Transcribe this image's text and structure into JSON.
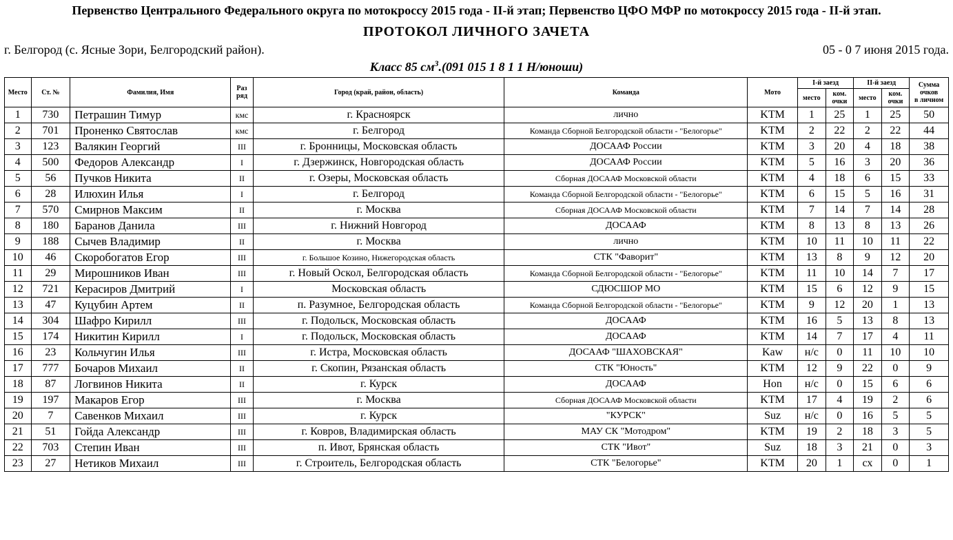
{
  "header": {
    "title": "Первенство Центрального Федерального округа по мотокроссу 2015 года - II-й этап; Первенство ЦФО МФР по мотокроссу 2015 года - II-й этап.",
    "subtitle": "ПРОТОКОЛ  ЛИЧНОГО  ЗАЧЕТА",
    "location": "г. Белгород (с. Ясные Зори, Белгородский район).",
    "dates": "05 - 0 7 июня 2015 года.",
    "class_prefix": "Класс 85 см",
    "class_sup": "3",
    "class_suffix": ".(091 015 1 8 1 1 Н/юноши)"
  },
  "columns": {
    "place": "Место",
    "st_no": "Ст. №",
    "name": "Фамилия, Имя",
    "razryad_l1": "Раз",
    "razryad_l2": "ряд",
    "city": "Город (край, район, область)",
    "team": "Команда",
    "moto": "Мото",
    "heat1": "I-й заезд",
    "heat2": "II-й заезд",
    "sub_place": "место",
    "sub_pts_l1": "ком.",
    "sub_pts_l2": "очки",
    "sum_l1": "Сумма",
    "sum_l2": "очков",
    "sum_l3": "в личном"
  },
  "rows": [
    {
      "p": "1",
      "st": "730",
      "name": "Петрашин Тимур",
      "r": "кмс",
      "city": "г. Красноярск",
      "team": "лично",
      "moto": "KTM",
      "h1p": "1",
      "h1k": "25",
      "h2p": "1",
      "h2k": "25",
      "sum": "50",
      "team_small": false,
      "city_small": false
    },
    {
      "p": "2",
      "st": "701",
      "name": "Проненко Святослав",
      "r": "кмс",
      "city": "г. Белгород",
      "team": "Команда Сборной Белгородской области - \"Белогорье\"",
      "moto": "KTM",
      "h1p": "2",
      "h1k": "22",
      "h2p": "2",
      "h2k": "22",
      "sum": "44",
      "team_small": true,
      "city_small": false
    },
    {
      "p": "3",
      "st": "123",
      "name": "Валякин Георгий",
      "r": "III",
      "city": "г. Бронницы, Московская область",
      "team": "ДОСААФ России",
      "moto": "KTM",
      "h1p": "3",
      "h1k": "20",
      "h2p": "4",
      "h2k": "18",
      "sum": "38",
      "team_small": false,
      "city_small": false
    },
    {
      "p": "4",
      "st": "500",
      "name": "Федоров Александр",
      "r": "I",
      "city": "г. Дзержинск, Новгородская область",
      "team": "ДОСААФ России",
      "moto": "KTM",
      "h1p": "5",
      "h1k": "16",
      "h2p": "3",
      "h2k": "20",
      "sum": "36",
      "team_small": false,
      "city_small": false
    },
    {
      "p": "5",
      "st": "56",
      "name": "Пучков Никита",
      "r": "II",
      "city": "г. Озеры, Московская область",
      "team": "Сборная ДОСААФ Московской области",
      "moto": "KTM",
      "h1p": "4",
      "h1k": "18",
      "h2p": "6",
      "h2k": "15",
      "sum": "33",
      "team_small": true,
      "city_small": false
    },
    {
      "p": "6",
      "st": "28",
      "name": "Илюхин Илья",
      "r": "I",
      "city": "г. Белгород",
      "team": "Команда Сборной Белгородской области - \"Белогорье\"",
      "moto": "KTM",
      "h1p": "6",
      "h1k": "15",
      "h2p": "5",
      "h2k": "16",
      "sum": "31",
      "team_small": true,
      "city_small": false
    },
    {
      "p": "7",
      "st": "570",
      "name": "Смирнов Максим",
      "r": "II",
      "city": "г. Москва",
      "team": "Сборная ДОСААФ Московской области",
      "moto": "KTM",
      "h1p": "7",
      "h1k": "14",
      "h2p": "7",
      "h2k": "14",
      "sum": "28",
      "team_small": true,
      "city_small": false
    },
    {
      "p": "8",
      "st": "180",
      "name": "Баранов Данила",
      "r": "III",
      "city": "г. Нижний Новгород",
      "team": "ДОСААФ",
      "moto": "KTM",
      "h1p": "8",
      "h1k": "13",
      "h2p": "8",
      "h2k": "13",
      "sum": "26",
      "team_small": false,
      "city_small": false
    },
    {
      "p": "9",
      "st": "188",
      "name": "Сычев Владимир",
      "r": "II",
      "city": "г. Москва",
      "team": "лично",
      "moto": "KTM",
      "h1p": "10",
      "h1k": "11",
      "h2p": "10",
      "h2k": "11",
      "sum": "22",
      "team_small": false,
      "city_small": false
    },
    {
      "p": "10",
      "st": "46",
      "name": "Скоробогатов Егор",
      "r": "III",
      "city": "г. Большое Козино, Нижегородская область",
      "team": "СТК \"Фаворит\"",
      "moto": "KTM",
      "h1p": "13",
      "h1k": "8",
      "h2p": "9",
      "h2k": "12",
      "sum": "20",
      "team_small": false,
      "city_small": true
    },
    {
      "p": "11",
      "st": "29",
      "name": "Мирошников Иван",
      "r": "III",
      "city": "г. Новый Оскол, Белгородская область",
      "team": "Команда Сборной Белгородской области - \"Белогорье\"",
      "moto": "KTM",
      "h1p": "11",
      "h1k": "10",
      "h2p": "14",
      "h2k": "7",
      "sum": "17",
      "team_small": true,
      "city_small": false
    },
    {
      "p": "12",
      "st": "721",
      "name": "Керасиров Дмитрий",
      "r": "I",
      "city": "Московская область",
      "team": "СДЮСШОР МО",
      "moto": "KTM",
      "h1p": "15",
      "h1k": "6",
      "h2p": "12",
      "h2k": "9",
      "sum": "15",
      "team_small": false,
      "city_small": false
    },
    {
      "p": "13",
      "st": "47",
      "name": "Куцубин Артем",
      "r": "II",
      "city": "п. Разумное, Белгородская область",
      "team": "Команда Сборной Белгородской области - \"Белогорье\"",
      "moto": "KTM",
      "h1p": "9",
      "h1k": "12",
      "h2p": "20",
      "h2k": "1",
      "sum": "13",
      "team_small": true,
      "city_small": false
    },
    {
      "p": "14",
      "st": "304",
      "name": "Шафро Кирилл",
      "r": "III",
      "city": "г. Подольск, Московская область",
      "team": "ДОСААФ",
      "moto": "KTM",
      "h1p": "16",
      "h1k": "5",
      "h2p": "13",
      "h2k": "8",
      "sum": "13",
      "team_small": false,
      "city_small": false
    },
    {
      "p": "15",
      "st": "174",
      "name": "Никитин Кирилл",
      "r": "I",
      "city": "г. Подольск, Московская область",
      "team": "ДОСААФ",
      "moto": "KTM",
      "h1p": "14",
      "h1k": "7",
      "h2p": "17",
      "h2k": "4",
      "sum": "11",
      "team_small": false,
      "city_small": false
    },
    {
      "p": "16",
      "st": "23",
      "name": "Кольчугин Илья",
      "r": "III",
      "city": "г. Истра, Московская область",
      "team": "ДОСААФ \"ШАХОВСКАЯ\"",
      "moto": "Kaw",
      "h1p": "н/с",
      "h1k": "0",
      "h2p": "11",
      "h2k": "10",
      "sum": "10",
      "team_small": false,
      "city_small": false
    },
    {
      "p": "17",
      "st": "777",
      "name": "Бочаров Михаил",
      "r": "II",
      "city": "г. Скопин, Рязанская область",
      "team": "СТК \"Юность\"",
      "moto": "KTM",
      "h1p": "12",
      "h1k": "9",
      "h2p": "22",
      "h2k": "0",
      "sum": "9",
      "team_small": false,
      "city_small": false
    },
    {
      "p": "18",
      "st": "87",
      "name": "Логвинов Никита",
      "r": "II",
      "city": "г. Курск",
      "team": "ДОСААФ",
      "moto": "Hon",
      "h1p": "н/с",
      "h1k": "0",
      "h2p": "15",
      "h2k": "6",
      "sum": "6",
      "team_small": false,
      "city_small": false
    },
    {
      "p": "19",
      "st": "197",
      "name": "Макаров Егор",
      "r": "III",
      "city": "г. Москва",
      "team": "Сборная ДОСААФ Московской области",
      "moto": "KTM",
      "h1p": "17",
      "h1k": "4",
      "h2p": "19",
      "h2k": "2",
      "sum": "6",
      "team_small": true,
      "city_small": false
    },
    {
      "p": "20",
      "st": "7",
      "name": "Савенков Михаил",
      "r": "III",
      "city": "г. Курск",
      "team": "\"КУРСК\"",
      "moto": "Suz",
      "h1p": "н/с",
      "h1k": "0",
      "h2p": "16",
      "h2k": "5",
      "sum": "5",
      "team_small": false,
      "city_small": false
    },
    {
      "p": "21",
      "st": "51",
      "name": "Гойда Александр",
      "r": "III",
      "city": "г. Ковров, Владимирская область",
      "team": "МАУ СК \"Мотодром\"",
      "moto": "KTM",
      "h1p": "19",
      "h1k": "2",
      "h2p": "18",
      "h2k": "3",
      "sum": "5",
      "team_small": false,
      "city_small": false
    },
    {
      "p": "22",
      "st": "703",
      "name": "Степин Иван",
      "r": "III",
      "city": "п. Ивот, Брянская область",
      "team": "СТК \"Ивот\"",
      "moto": "Suz",
      "h1p": "18",
      "h1k": "3",
      "h2p": "21",
      "h2k": "0",
      "sum": "3",
      "team_small": false,
      "city_small": false
    },
    {
      "p": "23",
      "st": "27",
      "name": "Нетиков Михаил",
      "r": "III",
      "city": "г. Строитель, Белгородская область",
      "team": "СТК \"Белогорье\"",
      "moto": "KTM",
      "h1p": "20",
      "h1k": "1",
      "h2p": "сх",
      "h2k": "0",
      "sum": "1",
      "team_small": false,
      "city_small": false
    }
  ]
}
